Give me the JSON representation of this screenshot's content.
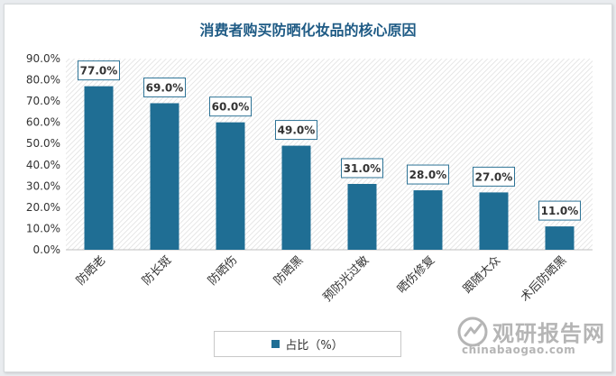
{
  "chart_data": {
    "type": "bar",
    "title": "消费者购买防晒化妆品的核心原因",
    "categories": [
      "防晒老",
      "防长斑",
      "防晒伤",
      "防晒黑",
      "预防光过敏",
      "晒伤修复",
      "跟随大众",
      "术后防晒黑"
    ],
    "series": [
      {
        "name": "占比（%）",
        "values": [
          77.0,
          69.0,
          60.0,
          49.0,
          31.0,
          28.0,
          27.0,
          11.0
        ]
      }
    ],
    "data_labels": [
      "77.0%",
      "69.0%",
      "60.0%",
      "49.0%",
      "31.0%",
      "28.0%",
      "27.0%",
      "11.0%"
    ],
    "y_ticks": [
      "0.0%",
      "10.0%",
      "20.0%",
      "30.0%",
      "40.0%",
      "50.0%",
      "60.0%",
      "70.0%",
      "80.0%",
      "90.0%"
    ],
    "ylim": [
      0,
      90
    ],
    "legend_position": "bottom",
    "bar_color": "#1f6e94",
    "plot_background": "hatched"
  },
  "watermark": {
    "name": "观研报告网",
    "url": "chinabaogao.com"
  }
}
